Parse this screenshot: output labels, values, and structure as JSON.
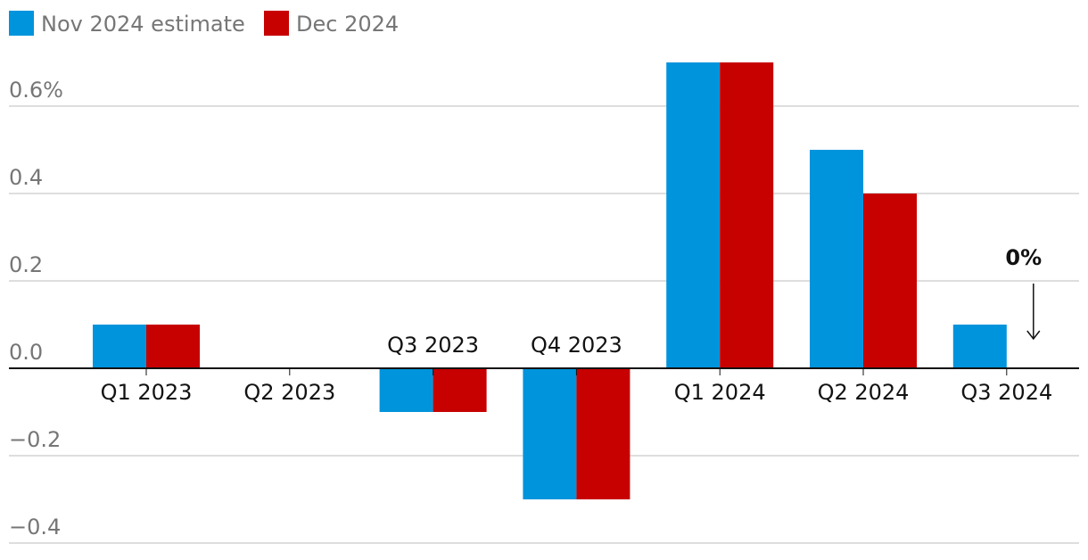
{
  "chart_data": {
    "type": "bar",
    "categories": [
      "Q1 2023",
      "Q2 2023",
      "Q3 2023",
      "Q4 2023",
      "Q1 2024",
      "Q2 2024",
      "Q3 2024"
    ],
    "series": [
      {
        "name": "Nov 2024 estimate",
        "color": "#0094dc",
        "values": [
          0.1,
          0.0,
          -0.1,
          -0.3,
          0.7,
          0.5,
          0.1
        ]
      },
      {
        "name": "Dec 2024",
        "color": "#c70000",
        "values": [
          0.1,
          0.0,
          -0.1,
          -0.3,
          0.7,
          0.4,
          0.0
        ]
      }
    ],
    "y_ticks": [
      {
        "value": 0.6,
        "label": "0.6%"
      },
      {
        "value": 0.4,
        "label": "0.4"
      },
      {
        "value": 0.2,
        "label": "0.2"
      },
      {
        "value": 0.0,
        "label": "0.0"
      },
      {
        "value": -0.2,
        "label": "−0.2"
      },
      {
        "value": -0.4,
        "label": "−0.4"
      }
    ],
    "ylim": [
      -0.4,
      0.7
    ],
    "grid": true,
    "legend_position": "top-left",
    "annotation": {
      "text": "0%",
      "category": "Q3 2024",
      "series": "Dec 2024",
      "value": 0.0
    }
  }
}
